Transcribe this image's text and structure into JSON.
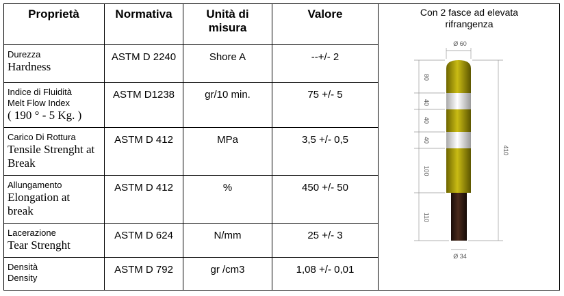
{
  "table": {
    "headers": [
      "Proprietà",
      "Normativa",
      "Unità di\nmisura",
      "Valore"
    ],
    "rows": [
      {
        "property": {
          "it": [
            "Durezza"
          ],
          "en": [
            "Hardness"
          ]
        },
        "standard": "ASTM D 2240",
        "unit": "Shore A",
        "value": "--+/- 2"
      },
      {
        "property": {
          "it": [
            "Indice di Fluidità",
            "Melt Flow Index"
          ],
          "en": [
            "( 190 ° - 5 Kg. )"
          ]
        },
        "standard": "ASTM D1238",
        "unit": "gr/10 min.",
        "value": "75 +/- 5"
      },
      {
        "property": {
          "it": [
            "Carico Di Rottura"
          ],
          "en": [
            "Tensile Strenght at Break"
          ]
        },
        "standard": "ASTM D 412",
        "unit": "MPa",
        "value": "3,5 +/- 0,5"
      },
      {
        "property": {
          "it": [
            "Allungamento"
          ],
          "en": [
            "Elongation at break"
          ]
        },
        "standard": "ASTM D 412",
        "unit": "%",
        "value": "450 +/- 50"
      },
      {
        "property": {
          "it": [
            "Lacerazione"
          ],
          "en": [
            "Tear Strenght"
          ]
        },
        "standard": "ASTM D 624",
        "unit": "N/mm",
        "value": "25 +/- 3"
      },
      {
        "property": {
          "it": [
            "Densità",
            "Density"
          ]
        },
        "standard": "ASTM D 792",
        "unit": "gr /cm3",
        "value": "1,08 +/- 0,01"
      }
    ]
  },
  "figure": {
    "caption": "Con 2 fasce ad elevata\nrifrangenza",
    "dimensions": {
      "top": "Ø 60",
      "segments": [
        "80",
        "40",
        "40",
        "40",
        "100",
        "110"
      ],
      "total": "410",
      "bottom": "Ø 34"
    }
  }
}
